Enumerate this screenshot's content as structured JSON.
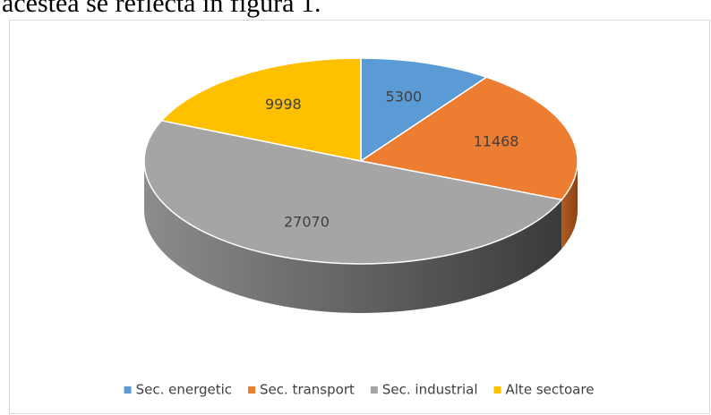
{
  "caption_fragment": "acestea se reflectă în figura 1.",
  "chart_data": {
    "type": "pie",
    "categories": [
      "Sec. energetic",
      "Sec. transport",
      "Sec. industrial",
      "Alte sectoare"
    ],
    "values": [
      5300,
      11468,
      27070,
      9998
    ],
    "colors": [
      "#5b9bd5",
      "#ed7d31",
      "#a5a5a5",
      "#ffc000"
    ],
    "legend": "bottom"
  }
}
